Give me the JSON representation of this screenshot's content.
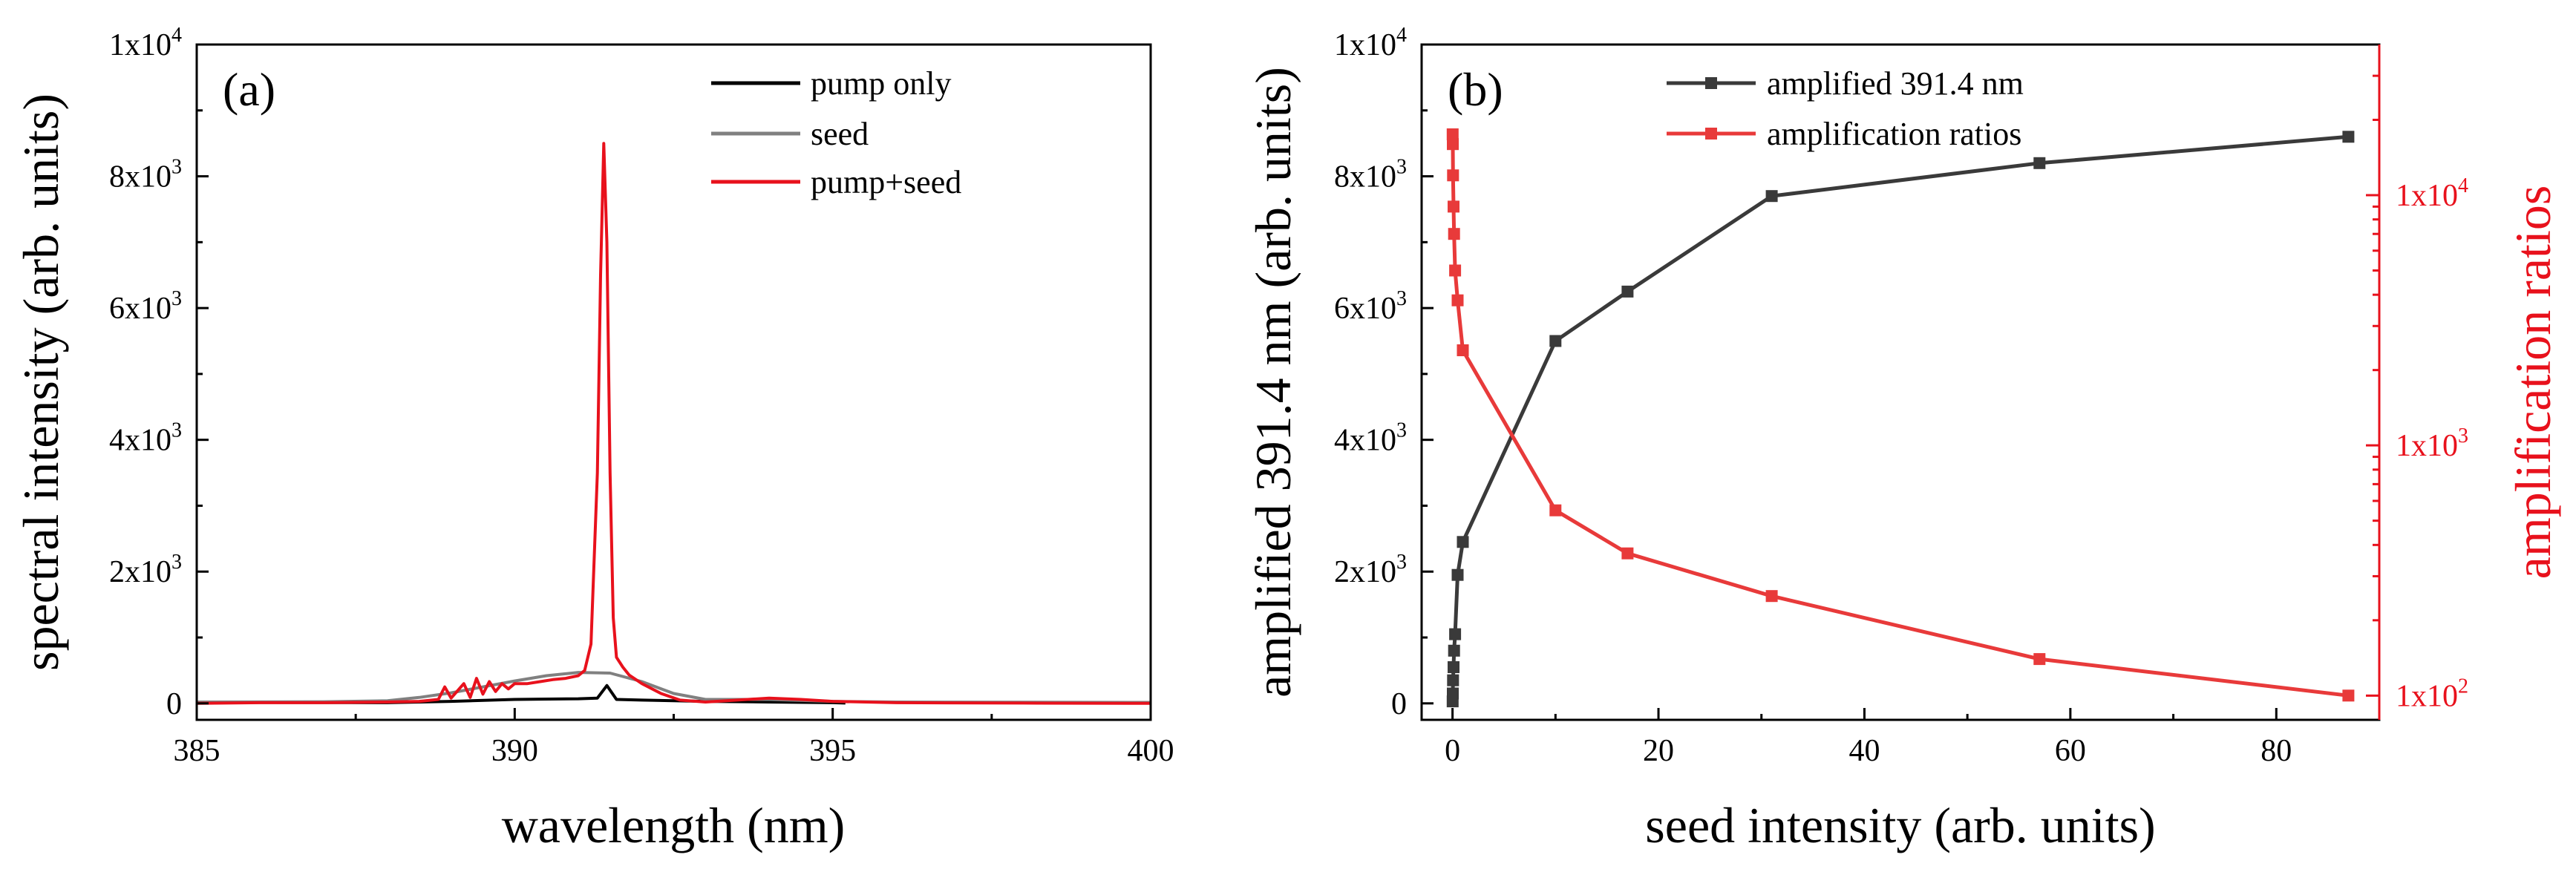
{
  "colors": {
    "pump_only": "#000000",
    "seed": "#808080",
    "pump_seed": "#e8111c",
    "amplified": "#3a3a3a",
    "ratios": "#e83a3a",
    "right_axis": "#e8111c"
  },
  "chart_data": [
    {
      "type": "line",
      "panel_label": "(a)",
      "title": "",
      "xlabel": "wavelength (nm)",
      "ylabel": "spectral intensity (arb. units)",
      "xlim": [
        385,
        400
      ],
      "ylim": [
        -250,
        10000
      ],
      "xticks": [
        385,
        390,
        395,
        400
      ],
      "xtick_labels": [
        "385",
        "390",
        "395",
        "400"
      ],
      "yticks": [
        0,
        2000,
        4000,
        6000,
        8000,
        10000
      ],
      "ytick_labels": [
        {
          "base": "0",
          "exp": ""
        },
        {
          "base": "2x10",
          "exp": "3"
        },
        {
          "base": "4x10",
          "exp": "3"
        },
        {
          "base": "6x10",
          "exp": "3"
        },
        {
          "base": "8x10",
          "exp": "3"
        },
        {
          "base": "1x10",
          "exp": "4"
        }
      ],
      "legend_position": "top-right",
      "series": [
        {
          "name": "pump only",
          "color_key": "pump_only",
          "x": [
            385,
            388,
            389,
            390,
            391,
            391.3,
            391.45,
            391.6,
            392,
            393,
            394,
            395,
            395.2
          ],
          "y": [
            15,
            10,
            30,
            60,
            70,
            80,
            270,
            60,
            50,
            30,
            20,
            10,
            5
          ]
        },
        {
          "name": "seed",
          "color_key": "seed",
          "x": [
            385,
            387,
            388,
            388.5,
            389,
            389.5,
            390,
            390.5,
            391,
            391.5,
            392,
            392.5,
            393,
            393.5,
            394,
            395,
            396,
            400
          ],
          "y": [
            20,
            25,
            40,
            90,
            160,
            250,
            340,
            420,
            470,
            460,
            330,
            150,
            60,
            60,
            60,
            30,
            20,
            15
          ]
        },
        {
          "name": "pump+seed",
          "color_key": "pump_seed",
          "x": [
            385,
            386,
            387,
            388,
            388.5,
            388.8,
            388.9,
            389.0,
            389.2,
            389.3,
            389.4,
            389.5,
            389.6,
            389.7,
            389.8,
            389.9,
            390.0,
            390.2,
            390.4,
            390.6,
            390.8,
            391.0,
            391.1,
            391.2,
            391.3,
            391.35,
            391.4,
            391.45,
            391.5,
            391.55,
            391.6,
            391.7,
            391.8,
            392.0,
            392.3,
            392.6,
            393.0,
            393.5,
            394.0,
            394.5,
            395.0,
            396.0,
            398.0,
            400.0
          ],
          "y": [
            0,
            10,
            10,
            20,
            30,
            60,
            250,
            80,
            300,
            90,
            380,
            140,
            330,
            180,
            300,
            220,
            300,
            300,
            330,
            360,
            380,
            420,
            500,
            900,
            3500,
            6500,
            8500,
            7000,
            3500,
            1300,
            700,
            550,
            430,
            300,
            150,
            50,
            20,
            50,
            80,
            60,
            30,
            10,
            5,
            0
          ]
        }
      ]
    },
    {
      "type": "line",
      "panel_label": "(b)",
      "title": "",
      "xlabel": "seed intensity (arb. units)",
      "ylabel": "amplified 391.4 nm (arb. units)",
      "y2label": "amplification ratios",
      "xlim": [
        -3,
        90
      ],
      "ylim": [
        -250,
        10000
      ],
      "y2lim_log": [
        80,
        40000
      ],
      "y2scale": "log",
      "xticks": [
        0,
        20,
        40,
        60,
        80
      ],
      "xtick_labels": [
        "0",
        "20",
        "40",
        "60",
        "80"
      ],
      "yticks": [
        0,
        2000,
        4000,
        6000,
        8000,
        10000
      ],
      "ytick_labels": [
        {
          "base": "0",
          "exp": ""
        },
        {
          "base": "2x10",
          "exp": "3"
        },
        {
          "base": "4x10",
          "exp": "3"
        },
        {
          "base": "6x10",
          "exp": "3"
        },
        {
          "base": "8x10",
          "exp": "3"
        },
        {
          "base": "1x10",
          "exp": "4"
        }
      ],
      "y2ticks": [
        100,
        1000,
        10000
      ],
      "y2tick_labels": [
        {
          "base": "1x10",
          "exp": "2"
        },
        {
          "base": "1x10",
          "exp": "3"
        },
        {
          "base": "1x10",
          "exp": "4"
        }
      ],
      "legend_position": "top-center",
      "series": [
        {
          "name": "amplified 391.4 nm",
          "axis": "left",
          "color_key": "amplified",
          "x": [
            0.01,
            0.03,
            0.05,
            0.1,
            0.15,
            0.25,
            0.5,
            1.0,
            10,
            17,
            31,
            57,
            87
          ],
          "y": [
            30,
            150,
            350,
            550,
            800,
            1050,
            1950,
            2450,
            5500,
            6250,
            7700,
            8200,
            8600
          ]
        },
        {
          "name": "amplification ratios",
          "axis": "right",
          "color_key": "ratios",
          "x": [
            0.01,
            0.03,
            0.05,
            0.1,
            0.15,
            0.25,
            0.5,
            1.0,
            10,
            17,
            31,
            57,
            87
          ],
          "y": [
            17500,
            16000,
            12000,
            9000,
            7000,
            5000,
            3800,
            2400,
            550,
            370,
            250,
            140,
            100
          ]
        }
      ]
    }
  ]
}
